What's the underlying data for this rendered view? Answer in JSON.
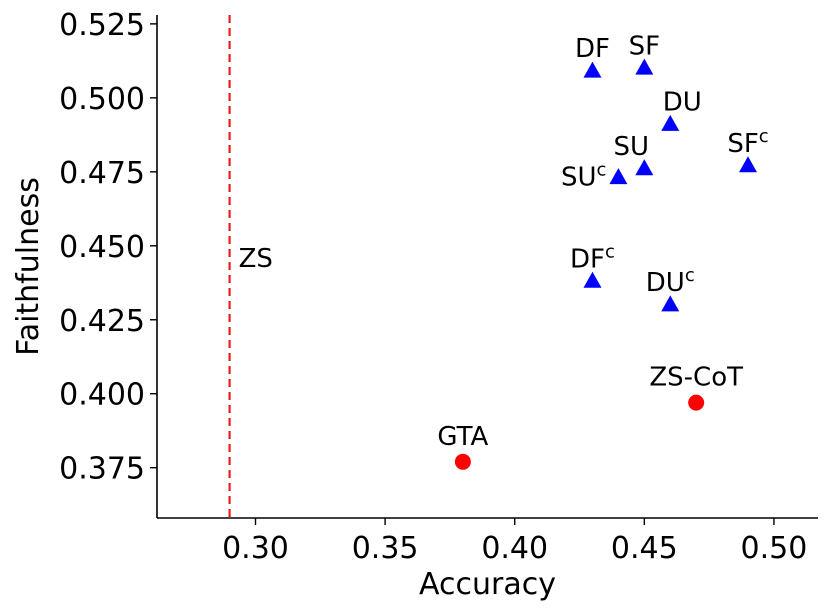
{
  "chart_data": {
    "type": "scatter",
    "xlabel": "Accuracy",
    "ylabel": "Faithfulness",
    "xlim": [
      0.262,
      0.517
    ],
    "ylim": [
      0.358,
      0.528
    ],
    "x_ticks": [
      "0.30",
      "0.35",
      "0.40",
      "0.45",
      "0.50"
    ],
    "y_ticks": [
      "0.375",
      "0.400",
      "0.425",
      "0.450",
      "0.475",
      "0.500",
      "0.525"
    ],
    "grid": false,
    "reference_line": {
      "label": "ZS",
      "x": 0.29,
      "color": "#e8201a",
      "style": "dashed"
    },
    "series": [
      {
        "marker": "triangle",
        "color": "#0000ff",
        "points": [
          {
            "label": "DF",
            "sup": "",
            "x": 0.43,
            "y": 0.509
          },
          {
            "label": "SF",
            "sup": "",
            "x": 0.45,
            "y": 0.51
          },
          {
            "label": "DU",
            "sup": "",
            "x": 0.46,
            "y": 0.491
          },
          {
            "label": "SU",
            "sup": "",
            "x": 0.45,
            "y": 0.476
          },
          {
            "label": "SU",
            "sup": "c",
            "x": 0.44,
            "y": 0.473
          },
          {
            "label": "SF",
            "sup": "c",
            "x": 0.49,
            "y": 0.477
          },
          {
            "label": "DF",
            "sup": "c",
            "x": 0.43,
            "y": 0.438
          },
          {
            "label": "DU",
            "sup": "c",
            "x": 0.46,
            "y": 0.43
          }
        ]
      },
      {
        "marker": "circle",
        "color": "#ff0000",
        "points": [
          {
            "label": "ZS-CoT",
            "sup": "",
            "x": 0.47,
            "y": 0.397
          },
          {
            "label": "GTA",
            "sup": "",
            "x": 0.38,
            "y": 0.377
          }
        ]
      }
    ]
  }
}
